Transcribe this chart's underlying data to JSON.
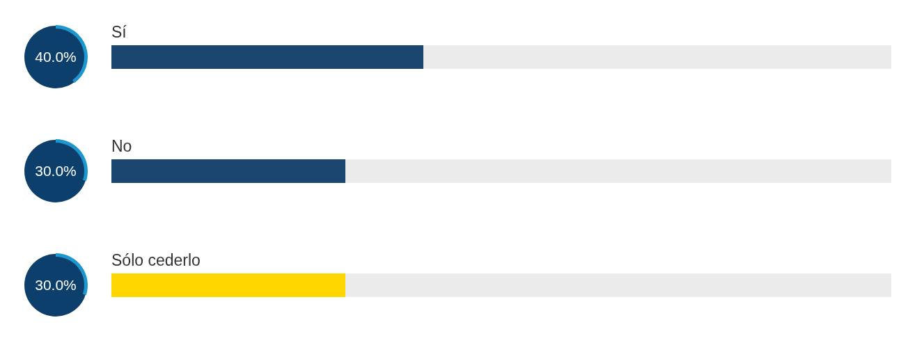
{
  "chart_data": {
    "type": "bar",
    "orientation": "horizontal",
    "categories": [
      "Sí",
      "No",
      "Sólo cederlo"
    ],
    "values": [
      40,
      30,
      30
    ],
    "colors": [
      "#1a4670",
      "#1a4670",
      "#ffd600"
    ],
    "value_labels": [
      "40.0%",
      "30.0%",
      "30.0%"
    ],
    "xlim": [
      0,
      100
    ]
  }
}
